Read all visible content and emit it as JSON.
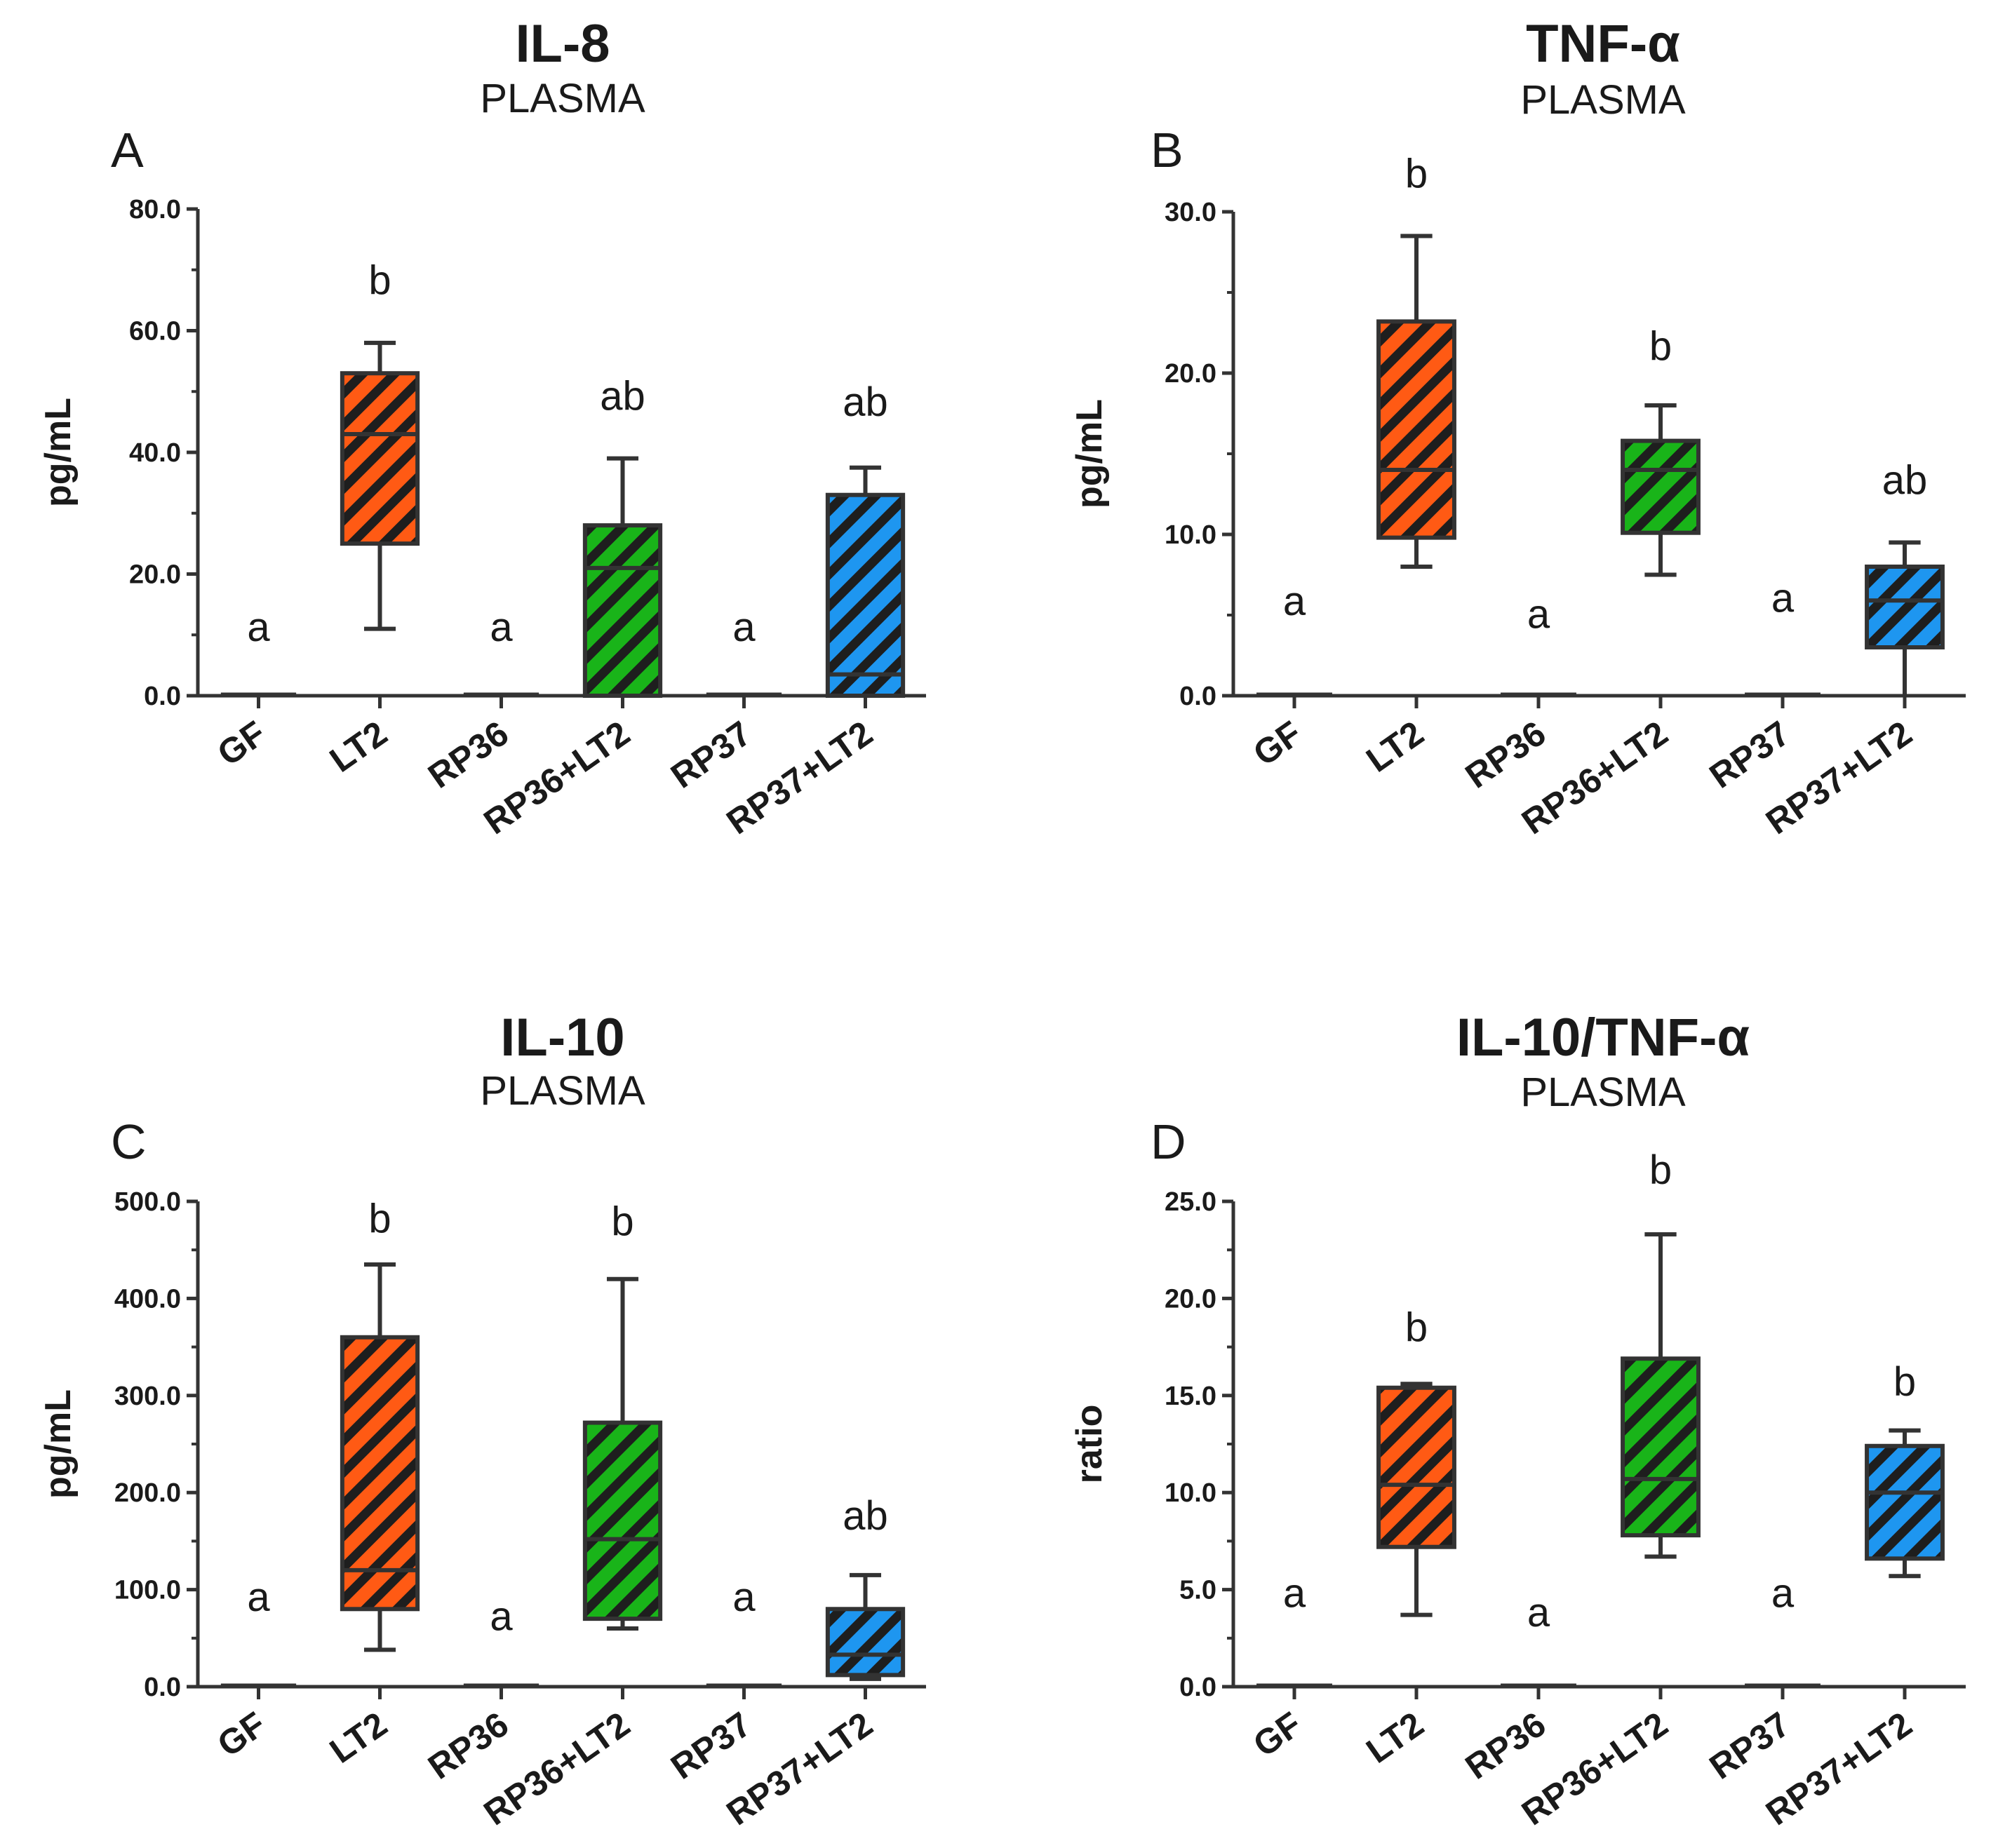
{
  "colors": {
    "GF": "#ffffff",
    "LT2": "#ff5a14",
    "RP36": "#ffffff",
    "RP36+LT2": "#19b419",
    "RP37": "#ffffff",
    "RP37+LT2": "#1e96f0",
    "outline": "#333333"
  },
  "chart_data": [
    {
      "id": "A",
      "type": "box",
      "panel_label": "A",
      "title": "IL-8",
      "subtitle": "PLASMA",
      "ylabel": "pg/mL",
      "ylim": [
        0,
        80
      ],
      "yticks": [
        "0.0",
        "20.0",
        "40.0",
        "60.0",
        "80.0"
      ],
      "categories": [
        "GF",
        "LT2",
        "RP36",
        "RP36+LT2",
        "RP37",
        "RP37+LT2"
      ],
      "boxes": [
        {
          "min": 0,
          "q1": 0,
          "median": 0,
          "q3": 0,
          "max": 0
        },
        {
          "min": 11,
          "q1": 25,
          "median": 43,
          "q3": 53,
          "max": 58
        },
        {
          "min": 0,
          "q1": 0,
          "median": 0,
          "q3": 0,
          "max": 0
        },
        {
          "min": 0,
          "q1": 0,
          "median": 21,
          "q3": 28,
          "max": 39
        },
        {
          "min": 0,
          "q1": 0,
          "median": 0,
          "q3": 0,
          "max": 0
        },
        {
          "min": 0,
          "q1": 0,
          "median": 3.5,
          "q3": 33,
          "max": 37.5
        }
      ],
      "significance": [
        "a",
        "b",
        "a",
        "ab",
        "a",
        "ab"
      ],
      "sig_y": [
        9,
        66,
        9,
        47,
        9,
        46
      ]
    },
    {
      "id": "B",
      "type": "box",
      "panel_label": "B",
      "title": "TNF-α",
      "subtitle": "PLASMA",
      "ylabel": "pg/mL",
      "ylim": [
        0,
        30
      ],
      "yticks": [
        "0.0",
        "10.0",
        "20.0",
        "30.0"
      ],
      "categories": [
        "GF",
        "LT2",
        "RP36",
        "RP36+LT2",
        "RP37",
        "RP37+LT2"
      ],
      "boxes": [
        {
          "min": 0,
          "q1": 0,
          "median": 0,
          "q3": 0,
          "max": 0
        },
        {
          "min": 8,
          "q1": 9.8,
          "median": 14,
          "q3": 23.2,
          "max": 28.5
        },
        {
          "min": 0,
          "q1": 0,
          "median": 0,
          "q3": 0,
          "max": 0
        },
        {
          "min": 7.5,
          "q1": 10.1,
          "median": 14,
          "q3": 15.8,
          "max": 18
        },
        {
          "min": 0,
          "q1": 0,
          "median": 0,
          "q3": 0,
          "max": 0
        },
        {
          "min": 0,
          "q1": 3,
          "median": 5.9,
          "q3": 8,
          "max": 9.5
        }
      ],
      "significance": [
        "a",
        "b",
        "a",
        "b",
        "a",
        "ab"
      ],
      "sig_y": [
        5,
        31.5,
        4.2,
        20.8,
        5.2,
        12.5
      ]
    },
    {
      "id": "C",
      "type": "box",
      "panel_label": "C",
      "title": "IL-10",
      "subtitle": "PLASMA",
      "ylabel": "pg/mL",
      "ylim": [
        0,
        500
      ],
      "yticks": [
        "0.0",
        "100.0",
        "200.0",
        "300.0",
        "400.0",
        "500.0"
      ],
      "categories": [
        "GF",
        "LT2",
        "RP36",
        "RP36+LT2",
        "RP37",
        "RP37+LT2"
      ],
      "boxes": [
        {
          "min": 0,
          "q1": 0,
          "median": 0,
          "q3": 0,
          "max": 0
        },
        {
          "min": 38,
          "q1": 80,
          "median": 120,
          "q3": 360,
          "max": 435
        },
        {
          "min": 0,
          "q1": 0,
          "median": 0,
          "q3": 0,
          "max": 0
        },
        {
          "min": 60,
          "q1": 70,
          "median": 152,
          "q3": 272,
          "max": 420
        },
        {
          "min": 0,
          "q1": 0,
          "median": 0,
          "q3": 0,
          "max": 0
        },
        {
          "min": 8,
          "q1": 12,
          "median": 33,
          "q3": 80,
          "max": 115
        }
      ],
      "significance": [
        "a",
        "b",
        "a",
        "b",
        "a",
        "ab"
      ],
      "sig_y": [
        78,
        468,
        58,
        465,
        78,
        162
      ]
    },
    {
      "id": "D",
      "type": "box",
      "panel_label": "D",
      "title": "IL-10/TNF-α",
      "subtitle": "PLASMA",
      "ylabel": "ratio",
      "ylim": [
        0,
        25
      ],
      "yticks": [
        "0.0",
        "5.0",
        "10.0",
        "15.0",
        "20.0",
        "25.0"
      ],
      "categories": [
        "GF",
        "LT2",
        "RP36",
        "RP36+LT2",
        "RP37",
        "RP37+LT2"
      ],
      "boxes": [
        {
          "min": 0,
          "q1": 0,
          "median": 0,
          "q3": 0,
          "max": 0
        },
        {
          "min": 3.7,
          "q1": 7.2,
          "median": 10.4,
          "q3": 15.4,
          "max": 15.6
        },
        {
          "min": 0,
          "q1": 0,
          "median": 0,
          "q3": 0,
          "max": 0
        },
        {
          "min": 6.7,
          "q1": 7.8,
          "median": 10.7,
          "q3": 16.9,
          "max": 23.3
        },
        {
          "min": 0,
          "q1": 0,
          "median": 0,
          "q3": 0,
          "max": 0
        },
        {
          "min": 5.7,
          "q1": 6.6,
          "median": 10,
          "q3": 12.4,
          "max": 13.2
        }
      ],
      "significance": [
        "a",
        "b",
        "a",
        "b",
        "a",
        "b"
      ],
      "sig_y": [
        4.1,
        17.8,
        3.1,
        25.9,
        4.1,
        15
      ]
    }
  ]
}
